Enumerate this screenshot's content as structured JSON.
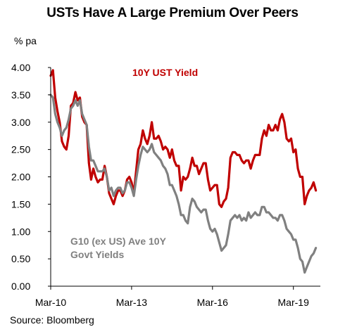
{
  "header": {
    "title": "USTs Have A Large Premium Over Peers",
    "unit": "% pa"
  },
  "footer": {
    "source": "Source: Bloomberg"
  },
  "colors": {
    "ust": "#c00000",
    "g10": "#808080",
    "axis": "#000000"
  },
  "chart_data": {
    "type": "line",
    "title": "USTs Have A Large Premium Over Peers",
    "ylabel": "% pa",
    "xlabel": "",
    "ylim": [
      0,
      4
    ],
    "xlim": [
      "2010-03",
      "2020-03"
    ],
    "grid": false,
    "y_ticks": [
      "0.00",
      "0.50",
      "1.00",
      "1.50",
      "2.00",
      "2.50",
      "3.00",
      "3.50",
      "4.00"
    ],
    "x_ticks": [
      {
        "label": "Mar-10",
        "date": "2010-03"
      },
      {
        "label": "Mar-13",
        "date": "2013-03"
      },
      {
        "label": "Mar-16",
        "date": "2016-03"
      },
      {
        "label": "Mar-19",
        "date": "2019-03"
      }
    ],
    "series": [
      {
        "name": "10Y UST Yield",
        "color": "#c00000",
        "points": [
          [
            "2010-03",
            3.85
          ],
          [
            "2010-04",
            3.95
          ],
          [
            "2010-05",
            3.45
          ],
          [
            "2010-06",
            3.2
          ],
          [
            "2010-07",
            3.0
          ],
          [
            "2010-08",
            2.65
          ],
          [
            "2010-09",
            2.55
          ],
          [
            "2010-10",
            2.5
          ],
          [
            "2010-11",
            2.75
          ],
          [
            "2010-12",
            3.3
          ],
          [
            "2011-01",
            3.35
          ],
          [
            "2011-02",
            3.55
          ],
          [
            "2011-03",
            3.4
          ],
          [
            "2011-04",
            3.45
          ],
          [
            "2011-05",
            3.1
          ],
          [
            "2011-06",
            3.0
          ],
          [
            "2011-07",
            2.95
          ],
          [
            "2011-08",
            2.25
          ],
          [
            "2011-09",
            1.95
          ],
          [
            "2011-10",
            2.15
          ],
          [
            "2011-11",
            2.0
          ],
          [
            "2011-12",
            1.9
          ],
          [
            "2012-01",
            1.95
          ],
          [
            "2012-02",
            1.95
          ],
          [
            "2012-03",
            2.2
          ],
          [
            "2012-04",
            2.0
          ],
          [
            "2012-05",
            1.7
          ],
          [
            "2012-06",
            1.6
          ],
          [
            "2012-07",
            1.5
          ],
          [
            "2012-08",
            1.65
          ],
          [
            "2012-09",
            1.75
          ],
          [
            "2012-10",
            1.75
          ],
          [
            "2012-11",
            1.65
          ],
          [
            "2012-12",
            1.75
          ],
          [
            "2013-01",
            1.95
          ],
          [
            "2013-02",
            2.0
          ],
          [
            "2013-03",
            1.9
          ],
          [
            "2013-04",
            1.7
          ],
          [
            "2013-05",
            2.1
          ],
          [
            "2013-06",
            2.5
          ],
          [
            "2013-07",
            2.6
          ],
          [
            "2013-08",
            2.85
          ],
          [
            "2013-09",
            2.7
          ],
          [
            "2013-10",
            2.6
          ],
          [
            "2013-11",
            2.75
          ],
          [
            "2013-12",
            3.0
          ],
          [
            "2014-01",
            2.7
          ],
          [
            "2014-02",
            2.7
          ],
          [
            "2014-03",
            2.75
          ],
          [
            "2014-04",
            2.65
          ],
          [
            "2014-05",
            2.5
          ],
          [
            "2014-06",
            2.55
          ],
          [
            "2014-07",
            2.5
          ],
          [
            "2014-08",
            2.35
          ],
          [
            "2014-09",
            2.5
          ],
          [
            "2014-10",
            2.3
          ],
          [
            "2014-11",
            2.2
          ],
          [
            "2014-12",
            2.2
          ],
          [
            "2015-01",
            1.75
          ],
          [
            "2015-02",
            2.0
          ],
          [
            "2015-03",
            1.95
          ],
          [
            "2015-04",
            2.0
          ],
          [
            "2015-05",
            2.15
          ],
          [
            "2015-06",
            2.35
          ],
          [
            "2015-07",
            2.2
          ],
          [
            "2015-08",
            2.2
          ],
          [
            "2015-09",
            2.05
          ],
          [
            "2015-10",
            2.15
          ],
          [
            "2015-11",
            2.25
          ],
          [
            "2015-12",
            2.25
          ],
          [
            "2016-01",
            1.95
          ],
          [
            "2016-02",
            1.75
          ],
          [
            "2016-03",
            1.8
          ],
          [
            "2016-04",
            1.85
          ],
          [
            "2016-05",
            1.85
          ],
          [
            "2016-06",
            1.5
          ],
          [
            "2016-07",
            1.45
          ],
          [
            "2016-08",
            1.55
          ],
          [
            "2016-09",
            1.6
          ],
          [
            "2016-10",
            1.8
          ],
          [
            "2016-11",
            2.35
          ],
          [
            "2016-12",
            2.45
          ],
          [
            "2017-01",
            2.45
          ],
          [
            "2017-02",
            2.4
          ],
          [
            "2017-03",
            2.4
          ],
          [
            "2017-04",
            2.3
          ],
          [
            "2017-05",
            2.25
          ],
          [
            "2017-06",
            2.3
          ],
          [
            "2017-07",
            2.3
          ],
          [
            "2017-08",
            2.15
          ],
          [
            "2017-09",
            2.3
          ],
          [
            "2017-10",
            2.4
          ],
          [
            "2017-11",
            2.4
          ],
          [
            "2017-12",
            2.4
          ],
          [
            "2018-01",
            2.7
          ],
          [
            "2018-02",
            2.85
          ],
          [
            "2018-03",
            2.75
          ],
          [
            "2018-04",
            2.95
          ],
          [
            "2018-05",
            2.85
          ],
          [
            "2018-06",
            2.85
          ],
          [
            "2018-07",
            2.95
          ],
          [
            "2018-08",
            2.85
          ],
          [
            "2018-09",
            3.05
          ],
          [
            "2018-10",
            3.15
          ],
          [
            "2018-11",
            3.0
          ],
          [
            "2018-12",
            2.7
          ],
          [
            "2019-01",
            2.65
          ],
          [
            "2019-02",
            2.7
          ],
          [
            "2019-03",
            2.45
          ],
          [
            "2019-04",
            2.5
          ],
          [
            "2019-05",
            2.15
          ],
          [
            "2019-06",
            2.0
          ],
          [
            "2019-07",
            2.0
          ],
          [
            "2019-08",
            1.5
          ],
          [
            "2019-09",
            1.65
          ],
          [
            "2019-10",
            1.75
          ],
          [
            "2019-11",
            1.8
          ],
          [
            "2019-12",
            1.9
          ],
          [
            "2020-01",
            1.75
          ]
        ]
      },
      {
        "name": "G10 (ex US) Ave 10Y Govt Yields",
        "color": "#808080",
        "points": [
          [
            "2010-03",
            3.5
          ],
          [
            "2010-04",
            3.45
          ],
          [
            "2010-05",
            3.15
          ],
          [
            "2010-06",
            3.0
          ],
          [
            "2010-07",
            2.9
          ],
          [
            "2010-08",
            2.75
          ],
          [
            "2010-09",
            2.85
          ],
          [
            "2010-10",
            2.9
          ],
          [
            "2010-11",
            3.05
          ],
          [
            "2010-12",
            3.25
          ],
          [
            "2011-01",
            3.3
          ],
          [
            "2011-02",
            3.4
          ],
          [
            "2011-03",
            3.3
          ],
          [
            "2011-04",
            3.4
          ],
          [
            "2011-05",
            3.15
          ],
          [
            "2011-06",
            3.05
          ],
          [
            "2011-07",
            2.95
          ],
          [
            "2011-08",
            2.55
          ],
          [
            "2011-09",
            2.3
          ],
          [
            "2011-10",
            2.3
          ],
          [
            "2011-11",
            2.2
          ],
          [
            "2011-12",
            2.1
          ],
          [
            "2012-01",
            2.1
          ],
          [
            "2012-02",
            2.1
          ],
          [
            "2012-03",
            2.15
          ],
          [
            "2012-04",
            2.0
          ],
          [
            "2012-05",
            1.75
          ],
          [
            "2012-06",
            1.8
          ],
          [
            "2012-07",
            1.65
          ],
          [
            "2012-08",
            1.75
          ],
          [
            "2012-09",
            1.8
          ],
          [
            "2012-10",
            1.8
          ],
          [
            "2012-11",
            1.7
          ],
          [
            "2012-12",
            1.75
          ],
          [
            "2013-01",
            1.9
          ],
          [
            "2013-02",
            1.9
          ],
          [
            "2013-03",
            1.8
          ],
          [
            "2013-04",
            1.65
          ],
          [
            "2013-05",
            1.95
          ],
          [
            "2013-06",
            2.2
          ],
          [
            "2013-07",
            2.4
          ],
          [
            "2013-08",
            2.55
          ],
          [
            "2013-09",
            2.5
          ],
          [
            "2013-10",
            2.45
          ],
          [
            "2013-11",
            2.5
          ],
          [
            "2013-12",
            2.6
          ],
          [
            "2014-01",
            2.45
          ],
          [
            "2014-02",
            2.4
          ],
          [
            "2014-03",
            2.35
          ],
          [
            "2014-04",
            2.3
          ],
          [
            "2014-05",
            2.2
          ],
          [
            "2014-06",
            2.15
          ],
          [
            "2014-07",
            2.05
          ],
          [
            "2014-08",
            1.85
          ],
          [
            "2014-09",
            1.85
          ],
          [
            "2014-10",
            1.75
          ],
          [
            "2014-11",
            1.65
          ],
          [
            "2014-12",
            1.5
          ],
          [
            "2015-01",
            1.3
          ],
          [
            "2015-02",
            1.3
          ],
          [
            "2015-03",
            1.2
          ],
          [
            "2015-04",
            1.15
          ],
          [
            "2015-05",
            1.45
          ],
          [
            "2015-06",
            1.6
          ],
          [
            "2015-07",
            1.55
          ],
          [
            "2015-08",
            1.45
          ],
          [
            "2015-09",
            1.4
          ],
          [
            "2015-10",
            1.35
          ],
          [
            "2015-11",
            1.4
          ],
          [
            "2015-12",
            1.4
          ],
          [
            "2016-01",
            1.2
          ],
          [
            "2016-02",
            1.05
          ],
          [
            "2016-03",
            1.0
          ],
          [
            "2016-04",
            1.05
          ],
          [
            "2016-05",
            0.95
          ],
          [
            "2016-06",
            0.8
          ],
          [
            "2016-07",
            0.65
          ],
          [
            "2016-08",
            0.7
          ],
          [
            "2016-09",
            0.75
          ],
          [
            "2016-10",
            0.95
          ],
          [
            "2016-11",
            1.2
          ],
          [
            "2016-12",
            1.25
          ],
          [
            "2017-01",
            1.3
          ],
          [
            "2017-02",
            1.25
          ],
          [
            "2017-03",
            1.3
          ],
          [
            "2017-04",
            1.2
          ],
          [
            "2017-05",
            1.25
          ],
          [
            "2017-06",
            1.2
          ],
          [
            "2017-07",
            1.35
          ],
          [
            "2017-08",
            1.25
          ],
          [
            "2017-09",
            1.3
          ],
          [
            "2017-10",
            1.35
          ],
          [
            "2017-11",
            1.3
          ],
          [
            "2017-12",
            1.3
          ],
          [
            "2018-01",
            1.45
          ],
          [
            "2018-02",
            1.45
          ],
          [
            "2018-03",
            1.35
          ],
          [
            "2018-04",
            1.35
          ],
          [
            "2018-05",
            1.3
          ],
          [
            "2018-06",
            1.25
          ],
          [
            "2018-07",
            1.25
          ],
          [
            "2018-08",
            1.2
          ],
          [
            "2018-09",
            1.3
          ],
          [
            "2018-10",
            1.3
          ],
          [
            "2018-11",
            1.2
          ],
          [
            "2018-12",
            1.05
          ],
          [
            "2019-01",
            1.0
          ],
          [
            "2019-02",
            0.95
          ],
          [
            "2019-03",
            0.85
          ],
          [
            "2019-04",
            0.85
          ],
          [
            "2019-05",
            0.7
          ],
          [
            "2019-06",
            0.5
          ],
          [
            "2019-07",
            0.45
          ],
          [
            "2019-08",
            0.25
          ],
          [
            "2019-09",
            0.35
          ],
          [
            "2019-10",
            0.45
          ],
          [
            "2019-11",
            0.55
          ],
          [
            "2019-12",
            0.6
          ],
          [
            "2020-01",
            0.7
          ]
        ]
      }
    ],
    "annotations": [
      {
        "series": 0,
        "lines": [
          "10Y UST Yield"
        ]
      },
      {
        "series": 1,
        "lines": [
          "G10 (ex US) Ave 10Y",
          "Govt Yields"
        ]
      }
    ]
  }
}
